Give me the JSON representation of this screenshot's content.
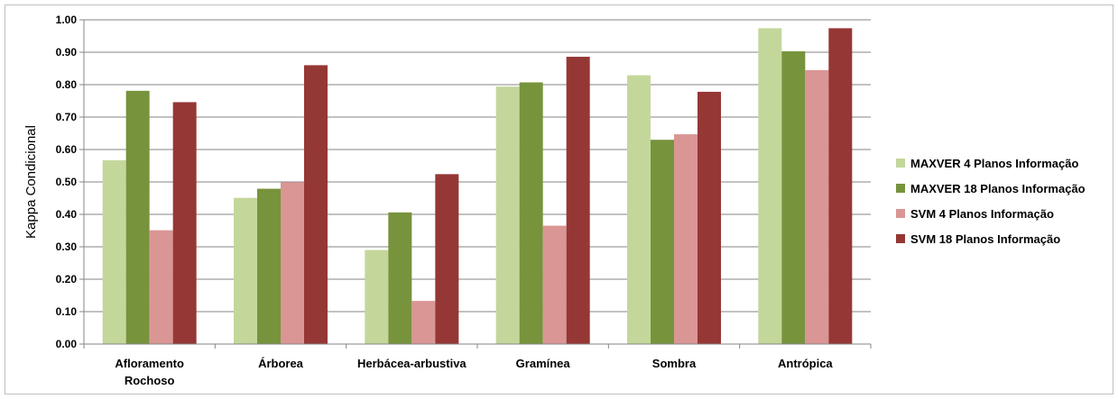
{
  "chart_data": {
    "type": "bar",
    "title": "",
    "xlabel": "",
    "ylabel": "Kappa Condicional",
    "ylim": [
      0,
      1.0
    ],
    "yticks": [
      "0.00",
      "0.10",
      "0.20",
      "0.30",
      "0.40",
      "0.50",
      "0.60",
      "0.70",
      "0.80",
      "0.90",
      "1.00"
    ],
    "grid": true,
    "legend_position": "right",
    "categories": [
      [
        "Afloramento",
        "Rochoso"
      ],
      [
        "Árborea"
      ],
      [
        "Herbácea-arbustiva"
      ],
      [
        "Gramínea"
      ],
      [
        "Sombra"
      ],
      [
        "Antrópica"
      ]
    ],
    "series": [
      {
        "name": "MAXVER 4 Planos Informação",
        "color": "#c4d79b",
        "values": [
          0.567,
          0.451,
          0.29,
          0.794,
          0.829,
          0.974
        ]
      },
      {
        "name": "MAXVER 18 Planos Informação",
        "color": "#77933c",
        "values": [
          0.781,
          0.479,
          0.406,
          0.807,
          0.63,
          0.903
        ]
      },
      {
        "name": "SVM 4 Planos Informação",
        "color": "#da9694",
        "values": [
          0.351,
          0.499,
          0.133,
          0.365,
          0.647,
          0.845
        ]
      },
      {
        "name": "SVM 18 Planos Informação",
        "color": "#953735",
        "values": [
          0.746,
          0.86,
          0.524,
          0.886,
          0.778,
          0.974
        ]
      }
    ]
  }
}
